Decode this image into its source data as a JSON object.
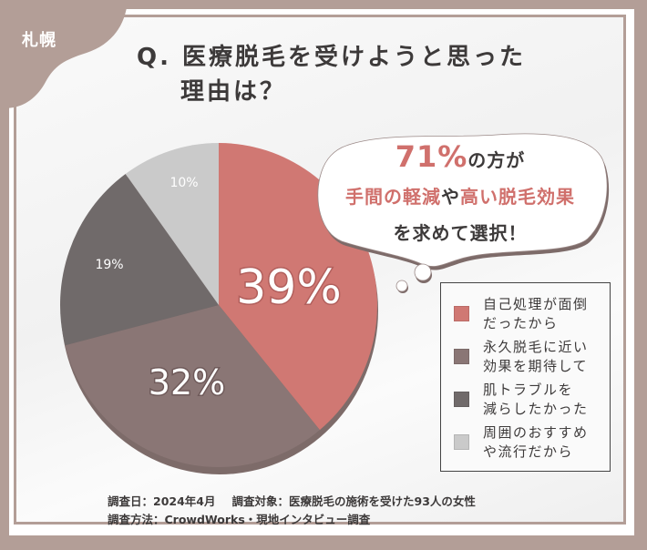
{
  "region_tag": "札幌",
  "title": {
    "line1": "Q. 医療脱毛を受けようと思った",
    "line2": "理由は？"
  },
  "callout": {
    "percent": "71%",
    "line1_rest": "の方が",
    "line2_part1": "手間の軽減",
    "line2_part2": "や",
    "line2_part3": "高い脱毛効果",
    "line3": "を求めて選択！"
  },
  "chart_data": {
    "type": "pie",
    "title": "Q. 医療脱毛を受けようと思った理由は？",
    "categories": [
      "自己処理が面倒だったから",
      "永久脱毛に近い効果を期待して",
      "肌トラブルを減らしたかった",
      "周囲のおすすめや流行だから"
    ],
    "values": [
      39,
      32,
      19,
      10
    ],
    "unit": "%",
    "colors": [
      "#d07873",
      "#8a7675",
      "#706a6a",
      "#cacaca"
    ],
    "labels": [
      "39%",
      "32%",
      "19%",
      "10%"
    ],
    "legend_position": "right",
    "start_angle": "12 o'clock, clockwise"
  },
  "legend": {
    "items": [
      {
        "label": "自己処理が面倒\nだったから",
        "color": "#d07873"
      },
      {
        "label": "永久脱毛に近い\n効果を期待して",
        "color": "#8a7675"
      },
      {
        "label": "肌トラブルを\n減らしたかった",
        "color": "#706a6a"
      },
      {
        "label": "周囲のおすすめ\nや流行だから",
        "color": "#cacaca"
      }
    ]
  },
  "footer": {
    "date": "調査日：2024年4月",
    "target": "調査対象：医療脱毛の施術を受けた93人の女性",
    "method": "調査方法：CrowdWorks・現地インタビュー調査"
  },
  "colors": {
    "frame": "#b39e97",
    "accent": "#d0706c",
    "text": "#3d3a3a"
  }
}
